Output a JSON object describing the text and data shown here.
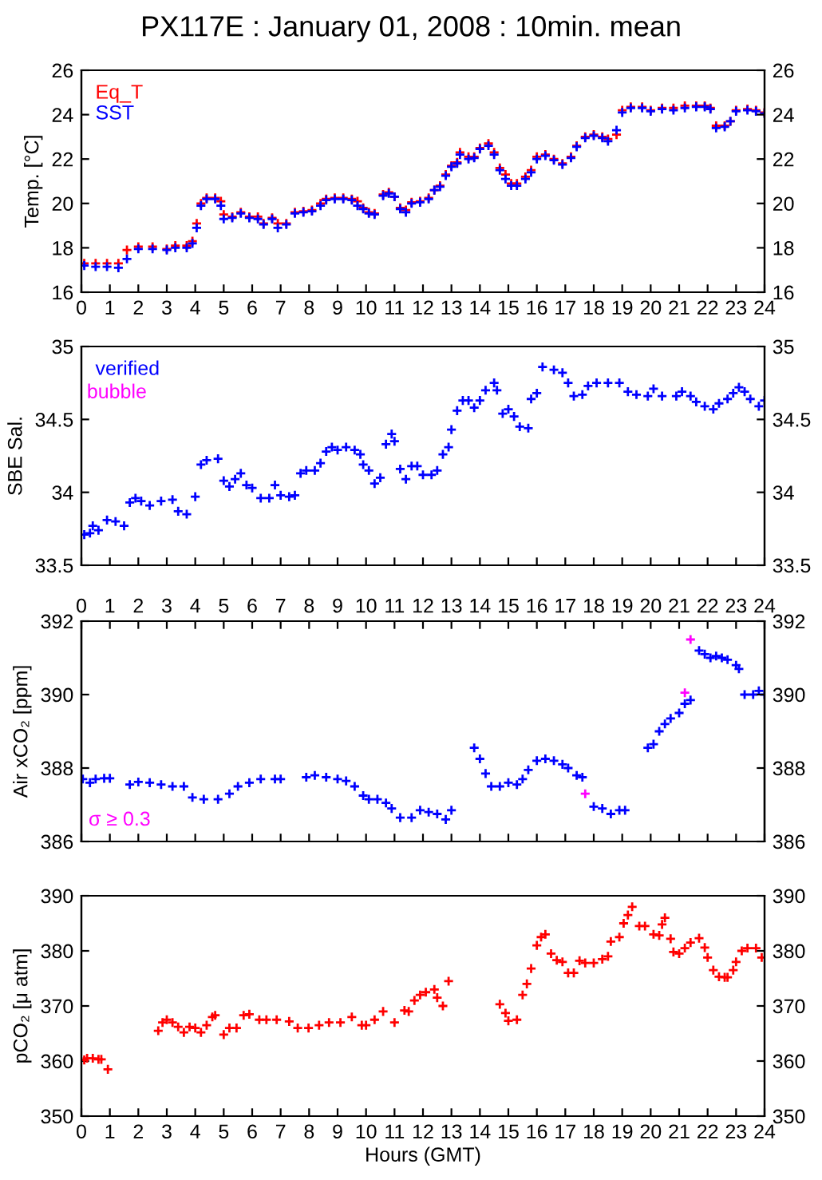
{
  "chart_data": [
    {
      "type": "scatter",
      "title": "PX117E : January 01, 2008 : 10min. mean",
      "ylabel": "Temp. [°C]",
      "marker": "cross",
      "legend": "top left",
      "grid": false,
      "xlim": [
        0,
        24
      ],
      "xticks": [
        0,
        1,
        2,
        3,
        4,
        5,
        6,
        7,
        8,
        9,
        10,
        11,
        12,
        13,
        14,
        15,
        16,
        17,
        18,
        19,
        20,
        21,
        22,
        23,
        24
      ],
      "ylim": [
        16,
        26
      ],
      "yticks": [
        16,
        18,
        20,
        22,
        24,
        26
      ],
      "y2lim": [
        16,
        26
      ],
      "y2ticks": [
        16,
        18,
        20,
        22,
        24,
        26
      ],
      "tick_labels": "xy",
      "series": [
        {
          "name": "Eq_T",
          "color": "#ff0000",
          "x": [
            0.1,
            0.5,
            0.9,
            1.3,
            1.6,
            2.0,
            2.5,
            3.0,
            3.3,
            3.7,
            3.9,
            4.05,
            4.2,
            4.4,
            4.7,
            4.9,
            5.0,
            5.3,
            5.6,
            5.9,
            6.2,
            6.4,
            6.7,
            6.9,
            7.2,
            7.5,
            7.8,
            8.1,
            8.4,
            8.6,
            8.9,
            9.2,
            9.5,
            9.7,
            9.9,
            10.1,
            10.3,
            10.6,
            10.8,
            11.0,
            11.2,
            11.4,
            11.6,
            11.9,
            12.2,
            12.4,
            12.6,
            12.8,
            13.0,
            13.2,
            13.3,
            13.6,
            13.8,
            14.0,
            14.3,
            14.5,
            14.7,
            14.9,
            15.1,
            15.3,
            15.6,
            15.8,
            16.0,
            16.3,
            16.6,
            16.9,
            17.2,
            17.4,
            17.7,
            18.0,
            18.3,
            18.5,
            18.8,
            19.0,
            19.3,
            19.7,
            20.0,
            20.4,
            20.8,
            21.2,
            21.6,
            21.9,
            22.1,
            22.3,
            22.6,
            22.8,
            23.0,
            23.4,
            23.7,
            24.0
          ],
          "values": [
            17.3,
            17.3,
            17.3,
            17.3,
            17.9,
            18.05,
            18.05,
            17.95,
            18.1,
            18.1,
            18.3,
            19.1,
            20.0,
            20.25,
            20.25,
            20.1,
            19.5,
            19.4,
            19.6,
            19.4,
            19.4,
            19.1,
            19.35,
            19.1,
            19.1,
            19.6,
            19.65,
            19.7,
            20.0,
            20.2,
            20.25,
            20.25,
            20.2,
            20.1,
            19.8,
            19.6,
            19.55,
            20.4,
            20.5,
            20.3,
            19.8,
            19.7,
            20.05,
            20.1,
            20.25,
            20.6,
            20.8,
            21.3,
            21.7,
            21.85,
            22.3,
            22.1,
            22.1,
            22.5,
            22.7,
            22.3,
            21.6,
            21.3,
            20.9,
            20.9,
            21.2,
            21.5,
            22.1,
            22.2,
            22.0,
            21.8,
            22.1,
            22.6,
            23.0,
            23.1,
            23.0,
            22.9,
            23.1,
            24.2,
            24.35,
            24.35,
            24.2,
            24.3,
            24.3,
            24.4,
            24.4,
            24.4,
            24.3,
            23.5,
            23.5,
            23.7,
            24.2,
            24.25,
            24.2,
            24.1
          ]
        },
        {
          "name": "SST",
          "color": "#0000ff",
          "x": [
            0.1,
            0.5,
            0.9,
            1.3,
            1.6,
            2.0,
            2.5,
            3.0,
            3.3,
            3.7,
            3.9,
            4.05,
            4.2,
            4.4,
            4.7,
            4.9,
            5.0,
            5.3,
            5.6,
            5.9,
            6.2,
            6.4,
            6.7,
            6.9,
            7.2,
            7.5,
            7.8,
            8.1,
            8.4,
            8.6,
            8.9,
            9.2,
            9.5,
            9.7,
            9.9,
            10.1,
            10.3,
            10.6,
            10.8,
            11.0,
            11.2,
            11.4,
            11.6,
            11.9,
            12.2,
            12.4,
            12.6,
            12.8,
            13.0,
            13.2,
            13.3,
            13.6,
            13.8,
            14.0,
            14.3,
            14.5,
            14.7,
            14.9,
            15.1,
            15.3,
            15.6,
            15.8,
            16.0,
            16.3,
            16.6,
            16.9,
            17.2,
            17.4,
            17.7,
            18.0,
            18.3,
            18.5,
            18.8,
            19.0,
            19.3,
            19.7,
            20.0,
            20.4,
            20.8,
            21.2,
            21.6,
            21.9,
            22.1,
            22.3,
            22.6,
            22.8,
            23.0,
            23.4,
            23.7,
            24.0
          ],
          "values": [
            17.2,
            17.15,
            17.15,
            17.1,
            17.5,
            17.95,
            17.95,
            17.9,
            18.0,
            18.0,
            18.2,
            18.9,
            19.9,
            20.2,
            20.2,
            19.9,
            19.3,
            19.35,
            19.55,
            19.35,
            19.3,
            19.05,
            19.3,
            18.9,
            19.05,
            19.55,
            19.6,
            19.65,
            19.9,
            20.15,
            20.2,
            20.2,
            20.15,
            19.9,
            19.75,
            19.55,
            19.5,
            20.35,
            20.45,
            20.3,
            19.75,
            19.6,
            20.0,
            20.05,
            20.2,
            20.6,
            20.75,
            21.25,
            21.65,
            21.8,
            22.2,
            22.0,
            22.05,
            22.45,
            22.6,
            22.2,
            21.5,
            21.1,
            20.8,
            20.8,
            21.1,
            21.4,
            22.0,
            22.15,
            21.95,
            21.75,
            22.05,
            22.55,
            22.95,
            23.05,
            22.95,
            22.8,
            23.3,
            24.1,
            24.3,
            24.3,
            24.15,
            24.25,
            24.2,
            24.3,
            24.35,
            24.35,
            24.25,
            23.4,
            23.45,
            23.7,
            24.15,
            24.2,
            24.15,
            24.05
          ]
        }
      ]
    },
    {
      "type": "scatter",
      "ylabel": "SBE Sal.",
      "marker": "cross",
      "legend": "top left",
      "grid": false,
      "annotations": [
        "bubble"
      ],
      "xlim": [
        0,
        24
      ],
      "ylim": [
        33.5,
        35
      ],
      "yticks": [
        33.5,
        34,
        34.5,
        35
      ],
      "y2lim": [
        33.5,
        35
      ],
      "y2ticks": [
        33.5,
        34,
        34.5,
        35
      ],
      "tick_labels": "y",
      "series": [
        {
          "name": "verified",
          "color": "#0000ff",
          "x": [
            0.1,
            0.3,
            0.4,
            0.6,
            0.9,
            1.2,
            1.5,
            1.7,
            1.9,
            2.1,
            2.4,
            2.8,
            3.2,
            3.4,
            3.7,
            4.0,
            4.2,
            4.4,
            4.8,
            5.0,
            5.2,
            5.4,
            5.6,
            5.8,
            6.0,
            6.3,
            6.6,
            6.8,
            7.0,
            7.3,
            7.5,
            7.7,
            7.9,
            8.2,
            8.4,
            8.6,
            8.8,
            9.0,
            9.3,
            9.6,
            9.8,
            9.9,
            10.1,
            10.3,
            10.5,
            10.7,
            10.9,
            11.0,
            11.2,
            11.4,
            11.6,
            11.8,
            12.0,
            12.3,
            12.5,
            12.7,
            12.9,
            13.0,
            13.2,
            13.4,
            13.6,
            13.8,
            14.0,
            14.2,
            14.5,
            14.6,
            14.8,
            15.0,
            15.2,
            15.4,
            15.7,
            15.8,
            16.0,
            16.2,
            16.6,
            16.9,
            17.1,
            17.3,
            17.6,
            17.8,
            18.1,
            18.5,
            18.9,
            19.2,
            19.5,
            19.9,
            20.1,
            20.4,
            20.9,
            21.1,
            21.4,
            21.6,
            21.9,
            22.2,
            22.4,
            22.7,
            22.9,
            23.1,
            23.3,
            23.5,
            23.8,
            24.0
          ],
          "values": [
            33.71,
            33.72,
            33.77,
            33.74,
            33.81,
            33.8,
            33.77,
            33.93,
            33.96,
            33.94,
            33.91,
            33.94,
            33.95,
            33.87,
            33.85,
            33.97,
            34.19,
            34.22,
            34.23,
            34.08,
            34.04,
            34.09,
            34.13,
            34.05,
            34.03,
            33.96,
            33.96,
            34.05,
            33.98,
            33.97,
            33.98,
            34.13,
            34.15,
            34.15,
            34.2,
            34.28,
            34.31,
            34.29,
            34.31,
            34.29,
            34.26,
            34.19,
            34.15,
            34.06,
            34.1,
            34.33,
            34.4,
            34.35,
            34.16,
            34.09,
            34.18,
            34.18,
            34.12,
            34.12,
            34.15,
            34.26,
            34.31,
            34.43,
            34.56,
            34.63,
            34.63,
            34.58,
            34.63,
            34.7,
            34.75,
            34.7,
            34.54,
            34.57,
            34.52,
            34.45,
            34.44,
            34.64,
            34.68,
            34.86,
            34.84,
            34.82,
            34.75,
            34.66,
            34.67,
            34.73,
            34.75,
            34.75,
            34.75,
            34.69,
            34.67,
            34.66,
            34.71,
            34.66,
            34.66,
            34.69,
            34.66,
            34.62,
            34.59,
            34.57,
            34.61,
            34.64,
            34.68,
            34.72,
            34.69,
            34.64,
            34.59,
            34.63
          ]
        }
      ]
    },
    {
      "type": "scatter",
      "ylabel": "Air xCO₂ [ppm]",
      "marker": "cross",
      "legend": "bottom left",
      "grid": false,
      "xlim": [
        0,
        24
      ],
      "x2lim": [
        0,
        24
      ],
      "x2ticks": [
        0,
        1,
        2,
        3,
        4,
        5,
        6,
        7,
        8,
        9,
        10,
        11,
        12,
        13,
        14,
        15,
        16,
        17,
        18,
        19,
        20,
        21,
        22,
        23,
        24
      ],
      "ylim": [
        386,
        392
      ],
      "yticks": [
        386,
        388,
        390,
        392
      ],
      "y2lim": [
        386,
        392
      ],
      "y2ticks": [
        386,
        388,
        390,
        392
      ],
      "tick_labels": "y",
      "series": [
        {
          "color": "#0000ff",
          "x": [
            0.05,
            0.3,
            0.5,
            0.8,
            1.0,
            1.7,
            2.0,
            2.4,
            2.8,
            3.2,
            3.6,
            3.9,
            4.3,
            4.8,
            5.2,
            5.5,
            5.9,
            6.3,
            6.8,
            7.0,
            7.9,
            8.2,
            8.6,
            9.0,
            9.3,
            9.6,
            9.9,
            10.1,
            10.4,
            10.7,
            10.9,
            11.2,
            11.6,
            11.9,
            12.2,
            12.5,
            12.8,
            13.0,
            13.8,
            14.0,
            14.2,
            14.4,
            14.7,
            15.0,
            15.3,
            15.5,
            15.7,
            16.0,
            16.3,
            16.6,
            16.9,
            17.1,
            17.4,
            17.6,
            18.0,
            18.3,
            18.6,
            18.9,
            19.1,
            19.9,
            20.1,
            20.3,
            20.5,
            20.7,
            21.0,
            21.2,
            21.4,
            21.7,
            21.9,
            22.1,
            22.3,
            22.5,
            22.7,
            23.0,
            23.1,
            23.3,
            23.6,
            23.8,
            24.0
          ],
          "values": [
            387.7,
            387.6,
            387.7,
            387.72,
            387.72,
            387.55,
            387.62,
            387.6,
            387.55,
            387.5,
            387.5,
            387.2,
            387.15,
            387.15,
            387.3,
            387.5,
            387.6,
            387.7,
            387.7,
            387.7,
            387.75,
            387.8,
            387.75,
            387.7,
            387.65,
            387.5,
            387.25,
            387.15,
            387.15,
            387.05,
            386.9,
            386.65,
            386.65,
            386.85,
            386.8,
            386.75,
            386.6,
            386.85,
            388.55,
            388.25,
            387.85,
            387.5,
            387.5,
            387.6,
            387.55,
            387.7,
            387.95,
            388.2,
            388.25,
            388.2,
            388.1,
            388.0,
            387.8,
            387.75,
            386.95,
            386.9,
            386.75,
            386.85,
            386.85,
            388.55,
            388.65,
            389.0,
            389.2,
            389.35,
            389.5,
            389.75,
            389.85,
            391.2,
            391.1,
            391.0,
            391.05,
            391.0,
            390.95,
            390.8,
            390.7,
            390.0,
            390.0,
            390.1,
            390.0
          ]
        },
        {
          "name": "σ ≥ 0.3",
          "color": "#ff00ff",
          "x": [
            17.7,
            21.2,
            21.4
          ],
          "values": [
            387.3,
            390.05,
            391.5
          ]
        }
      ]
    },
    {
      "type": "scatter",
      "ylabel": "pCO₂ [μ atm]",
      "xlabel": "Hours (GMT)",
      "marker": "cross",
      "grid": false,
      "xlim": [
        0,
        24
      ],
      "xticks": [
        0,
        1,
        2,
        3,
        4,
        5,
        6,
        7,
        8,
        9,
        10,
        11,
        12,
        13,
        14,
        15,
        16,
        17,
        18,
        19,
        20,
        21,
        22,
        23,
        24
      ],
      "ylim": [
        350,
        390
      ],
      "yticks": [
        350,
        360,
        370,
        380,
        390
      ],
      "y2lim": [
        350,
        390
      ],
      "y2ticks": [
        350,
        360,
        370,
        380,
        390
      ],
      "tick_labels": "xy",
      "series": [
        {
          "color": "#ff0000",
          "x": [
            0.1,
            0.2,
            0.4,
            0.6,
            0.7,
            0.93,
            2.7,
            2.85,
            3.0,
            3.2,
            3.4,
            3.6,
            3.8,
            4.0,
            4.2,
            4.4,
            4.6,
            4.7,
            5.0,
            5.2,
            5.45,
            5.7,
            5.9,
            6.25,
            6.5,
            6.86,
            7.3,
            7.6,
            7.98,
            8.35,
            8.7,
            9.1,
            9.5,
            9.85,
            10.0,
            10.3,
            10.6,
            11.0,
            11.35,
            11.5,
            11.7,
            11.9,
            12.1,
            12.4,
            12.5,
            12.7,
            12.9,
            14.7,
            14.9,
            15.0,
            15.3,
            15.5,
            15.65,
            15.8,
            16.0,
            16.15,
            16.3,
            16.5,
            16.7,
            16.9,
            17.1,
            17.3,
            17.5,
            17.7,
            18.0,
            18.3,
            18.5,
            18.6,
            18.9,
            19.05,
            19.2,
            19.35,
            19.6,
            19.8,
            20.1,
            20.3,
            20.4,
            20.5,
            20.7,
            20.8,
            21.0,
            21.2,
            21.4,
            21.7,
            21.9,
            22.0,
            22.2,
            22.4,
            22.6,
            22.7,
            22.9,
            23.0,
            23.2,
            23.4,
            23.7,
            23.9
          ],
          "values": [
            360.2,
            360.5,
            360.5,
            360.3,
            360.3,
            358.5,
            365.5,
            367,
            367.5,
            367,
            366.2,
            365.2,
            366.2,
            366,
            365.2,
            366.5,
            368,
            368.3,
            364.8,
            366,
            366,
            368.3,
            368.5,
            367.5,
            367.5,
            367.5,
            367.2,
            366,
            366,
            366.5,
            367,
            367,
            368,
            366.5,
            366.5,
            367.5,
            369,
            367,
            369.2,
            369,
            371,
            372,
            372.5,
            373,
            371.5,
            370,
            374.5,
            370.3,
            368.7,
            367.3,
            367.5,
            372,
            374,
            376.8,
            381,
            382.5,
            383,
            379.5,
            378.3,
            378,
            376,
            376,
            378.2,
            377.8,
            377.8,
            378.5,
            379,
            381.7,
            382.5,
            385,
            386.5,
            388,
            384.5,
            384.5,
            383,
            382.8,
            384.8,
            386,
            382.2,
            379.8,
            379.5,
            380.5,
            381.5,
            382.3,
            380.6,
            378.8,
            376.5,
            375.3,
            375.2,
            375.2,
            376.5,
            378,
            380,
            380.5,
            380.5,
            378.8
          ]
        }
      ]
    }
  ]
}
